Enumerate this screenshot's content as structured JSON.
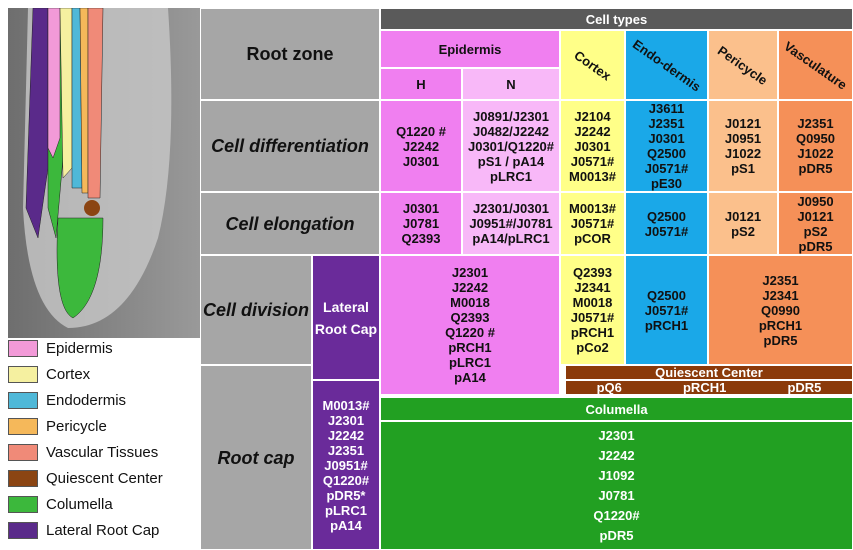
{
  "figure": {
    "legend": [
      {
        "label": "Epidermis",
        "color": "#f29ad8"
      },
      {
        "label": "Cortex",
        "color": "#f5f0a0"
      },
      {
        "label": "Endodermis",
        "color": "#4fb8d8"
      },
      {
        "label": "Pericycle",
        "color": "#f5b85a"
      },
      {
        "label": "Vascular Tissues",
        "color": "#f08a78"
      },
      {
        "label": "Quiescent Center",
        "color": "#8b4513"
      },
      {
        "label": "Columella",
        "color": "#3cb83c"
      },
      {
        "label": "Lateral Root Cap",
        "color": "#5a2a8a"
      }
    ],
    "table": {
      "cell_types_header": "Cell types",
      "root_zone_header": "Root zone",
      "columns": {
        "epidermis": "Epidermis",
        "h": "H",
        "n": "N",
        "cortex": "Cortex",
        "endodermis": "Endo-dermis",
        "pericycle": "Pericycle",
        "vasculature": "Vasculature"
      },
      "differentiation": {
        "label": "Cell differentiation",
        "h": [
          "Q1220 #",
          "J2242",
          "J0301"
        ],
        "n": [
          "J0891/J2301",
          "J0482/J2242",
          "J0301/Q1220#",
          "pS1 / pA14",
          "pLRC1"
        ],
        "cortex": [
          "J2104",
          "J2242",
          "J0301",
          "J0571#",
          "M0013#"
        ],
        "endodermis": [
          "J3611",
          "J2351",
          "J0301",
          "Q2500",
          "J0571#",
          "pE30"
        ],
        "pericycle": [
          "J0121",
          "J0951",
          "J1022",
          "pS1"
        ],
        "vasculature": [
          "J2351",
          "Q0950",
          "J1022",
          "pDR5"
        ]
      },
      "elongation": {
        "label": "Cell elongation",
        "h": [
          "J0301",
          "J0781",
          "Q2393"
        ],
        "n": [
          "J2301/J0301",
          "J0951#/J0781",
          "pA14/pLRC1"
        ],
        "cortex": [
          "M0013#",
          "J0571#",
          "pCOR"
        ],
        "endodermis": [
          "Q2500",
          "J0571#"
        ],
        "pericycle": [
          "J0121",
          "pS2"
        ],
        "vasculature": [
          "J0950",
          "J0121",
          "pS2",
          "pDR5"
        ]
      },
      "division": {
        "label": "Cell division",
        "lateral_root_cap": "Lateral Root Cap",
        "epidermis": [
          "J2301",
          "J2242",
          "M0018",
          "Q2393",
          "Q1220 #",
          "pRCH1",
          "pLRC1",
          "pA14"
        ],
        "cortex": [
          "Q2393",
          "J2341",
          "M0018",
          "J0571#",
          "pRCH1",
          "pCo2"
        ],
        "endodermis": [
          "Q2500",
          "J0571#",
          "pRCH1"
        ],
        "pericycle_vasculature": [
          "J2351",
          "J2341",
          "Q0990",
          "pRCH1",
          "pDR5"
        ]
      },
      "quiescent_center": {
        "label": "Quiescent  Center",
        "markers": [
          "pQ6",
          "pRCH1",
          "pDR5"
        ]
      },
      "root_cap": {
        "label": "Root cap",
        "lateral_root_cap": [
          "M0013#",
          "J2301",
          "J2242",
          "J2351",
          "J0951#",
          "Q1220#",
          "pDR5*",
          "pLRC1",
          "pA14"
        ],
        "columella_label": "Columella",
        "columella": [
          "J2301",
          "J2242",
          "J1092",
          "J0781",
          "Q1220#",
          "pDR5"
        ]
      }
    }
  }
}
